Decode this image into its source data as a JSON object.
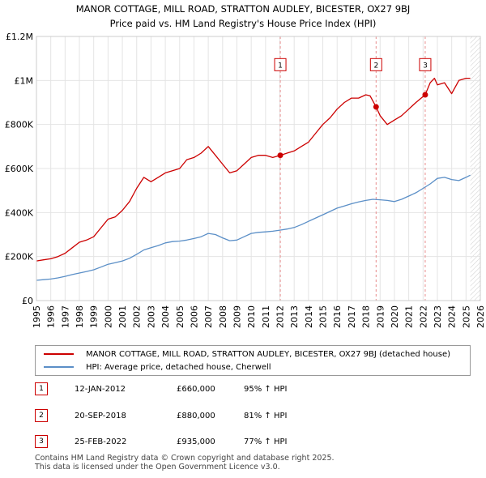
{
  "chart_data": {
    "type": "line",
    "title": "MANOR COTTAGE, MILL ROAD, STRATTON AUDLEY, BICESTER, OX27 9BJ",
    "subtitle": "Price paid vs. HM Land Registry's House Price Index (HPI)",
    "xlim": [
      1995,
      2026
    ],
    "ylim": [
      0,
      1200000
    ],
    "x_ticks": [
      "1995",
      "1996",
      "1997",
      "1998",
      "1999",
      "2000",
      "2001",
      "2002",
      "2003",
      "2004",
      "2005",
      "2006",
      "2007",
      "2008",
      "2009",
      "2010",
      "2011",
      "2012",
      "2013",
      "2014",
      "2015",
      "2016",
      "2017",
      "2018",
      "2019",
      "2020",
      "2021",
      "2022",
      "2023",
      "2024",
      "2025",
      "2026"
    ],
    "y_ticks": [
      {
        "value": 0,
        "label": "£0"
      },
      {
        "value": 200000,
        "label": "£200K"
      },
      {
        "value": 400000,
        "label": "£400K"
      },
      {
        "value": 600000,
        "label": "£600K"
      },
      {
        "value": 800000,
        "label": "£800K"
      },
      {
        "value": 1000000,
        "label": "£1M"
      },
      {
        "value": 1200000,
        "label": "£1.2M"
      }
    ],
    "series": [
      {
        "name": "MANOR COTTAGE, MILL ROAD, STRATTON AUDLEY, BICESTER, OX27 9BJ (detached house)",
        "color": "#cc0000",
        "x": [
          1995.0,
          1995.5,
          1996.0,
          1996.5,
          1997.0,
          1997.5,
          1998.0,
          1998.5,
          1999.0,
          1999.5,
          2000.0,
          2000.5,
          2001.0,
          2001.5,
          2002.0,
          2002.5,
          2003.0,
          2003.5,
          2004.0,
          2004.5,
          2005.0,
          2005.5,
          2006.0,
          2006.5,
          2007.0,
          2007.5,
          2008.0,
          2008.5,
          2009.0,
          2009.5,
          2010.0,
          2010.5,
          2011.0,
          2011.5,
          2012.03,
          2012.5,
          2013.0,
          2013.5,
          2014.0,
          2014.5,
          2015.0,
          2015.5,
          2016.0,
          2016.5,
          2017.0,
          2017.5,
          2018.0,
          2018.3,
          2018.72,
          2019.0,
          2019.5,
          2020.0,
          2020.5,
          2021.0,
          2021.5,
          2022.15,
          2022.5,
          2022.8,
          2023.0,
          2023.5,
          2024.0,
          2024.5,
          2025.0,
          2025.3
        ],
        "values": [
          180000,
          185000,
          190000,
          200000,
          215000,
          240000,
          265000,
          275000,
          290000,
          330000,
          370000,
          380000,
          410000,
          450000,
          510000,
          560000,
          540000,
          560000,
          580000,
          590000,
          600000,
          640000,
          650000,
          670000,
          700000,
          660000,
          620000,
          580000,
          590000,
          620000,
          650000,
          660000,
          660000,
          650000,
          660000,
          670000,
          680000,
          700000,
          720000,
          760000,
          800000,
          830000,
          870000,
          900000,
          920000,
          920000,
          935000,
          930000,
          880000,
          840000,
          800000,
          820000,
          840000,
          870000,
          900000,
          935000,
          990000,
          1010000,
          980000,
          990000,
          940000,
          1000000,
          1010000,
          1010000
        ]
      },
      {
        "name": "HPI: Average price, detached house, Cherwell",
        "color": "#5b8fc7",
        "x": [
          1995.0,
          1995.5,
          1996.0,
          1996.5,
          1997.0,
          1997.5,
          1998.0,
          1998.5,
          1999.0,
          1999.5,
          2000.0,
          2000.5,
          2001.0,
          2001.5,
          2002.0,
          2002.5,
          2003.0,
          2003.5,
          2004.0,
          2004.5,
          2005.0,
          2005.5,
          2006.0,
          2006.5,
          2007.0,
          2007.5,
          2008.0,
          2008.5,
          2009.0,
          2009.5,
          2010.0,
          2010.5,
          2011.0,
          2011.5,
          2012.0,
          2012.5,
          2013.0,
          2013.5,
          2014.0,
          2014.5,
          2015.0,
          2015.5,
          2016.0,
          2016.5,
          2017.0,
          2017.5,
          2018.0,
          2018.5,
          2019.0,
          2019.5,
          2020.0,
          2020.5,
          2021.0,
          2021.5,
          2022.0,
          2022.5,
          2023.0,
          2023.5,
          2024.0,
          2024.5,
          2025.0,
          2025.3
        ],
        "values": [
          92000,
          95000,
          98000,
          103000,
          110000,
          118000,
          125000,
          132000,
          140000,
          152000,
          165000,
          172000,
          180000,
          192000,
          210000,
          230000,
          240000,
          250000,
          262000,
          268000,
          270000,
          275000,
          282000,
          290000,
          305000,
          300000,
          285000,
          272000,
          275000,
          290000,
          305000,
          310000,
          312000,
          315000,
          320000,
          325000,
          332000,
          345000,
          360000,
          375000,
          390000,
          405000,
          420000,
          430000,
          440000,
          448000,
          455000,
          460000,
          458000,
          455000,
          450000,
          460000,
          475000,
          490000,
          510000,
          530000,
          555000,
          560000,
          550000,
          545000,
          560000,
          570000
        ]
      }
    ],
    "sales": [
      {
        "label": "1",
        "x": 2012.03,
        "value": 660000
      },
      {
        "label": "2",
        "x": 2018.72,
        "value": 880000
      },
      {
        "label": "3",
        "x": 2022.15,
        "value": 935000
      }
    ],
    "marker_y_value": 1070000,
    "forecast_from": 2025.3
  },
  "legend": {
    "series1": "MANOR COTTAGE, MILL ROAD, STRATTON AUDLEY, BICESTER, OX27 9BJ (detached house)",
    "series2": "HPI: Average price, detached house, Cherwell",
    "series1_color": "#cc0000",
    "series2_color": "#5b8fc7"
  },
  "sales_table": [
    {
      "num": "1",
      "date": "12-JAN-2012",
      "price": "£660,000",
      "hpi": "95% ↑ HPI"
    },
    {
      "num": "2",
      "date": "20-SEP-2018",
      "price": "£880,000",
      "hpi": "81% ↑ HPI"
    },
    {
      "num": "3",
      "date": "25-FEB-2022",
      "price": "£935,000",
      "hpi": "77% ↑ HPI"
    }
  ],
  "footer": {
    "line1": "Contains HM Land Registry data © Crown copyright and database right 2025.",
    "line2": "This data is licensed under the Open Government Licence v3.0."
  }
}
